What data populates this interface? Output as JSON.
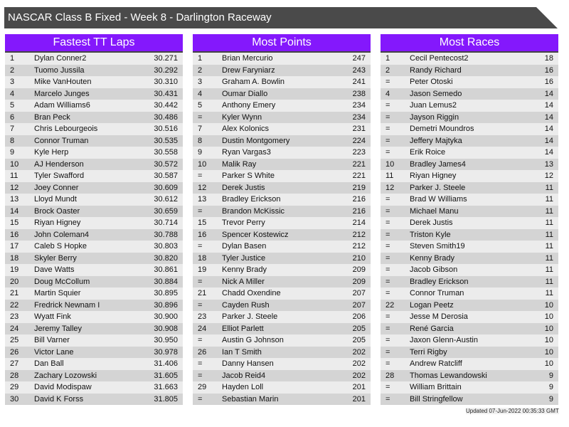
{
  "title": "NASCAR Class B Fixed - Week 8 - Darlington Raceway",
  "updated": "Updated 07-Jun-2022 00:35:33 GMT",
  "colors": {
    "header": "#8418fc",
    "title_bar": "#4a4a4a"
  },
  "tables": [
    {
      "title": "Fastest TT Laps",
      "rows": [
        [
          "1",
          "Dylan Conner2",
          "30.271"
        ],
        [
          "2",
          "Tuomo Jussila",
          "30.292"
        ],
        [
          "3",
          "Mike VanHouten",
          "30.310"
        ],
        [
          "4",
          "Marcelo Junges",
          "30.431"
        ],
        [
          "5",
          "Adam Williams6",
          "30.442"
        ],
        [
          "6",
          "Bran Peck",
          "30.486"
        ],
        [
          "7",
          "Chris Lebourgeois",
          "30.516"
        ],
        [
          "8",
          "Connor Truman",
          "30.535"
        ],
        [
          "9",
          "Kyle Herp",
          "30.558"
        ],
        [
          "10",
          "AJ Henderson",
          "30.572"
        ],
        [
          "11",
          "Tyler Swafford",
          "30.587"
        ],
        [
          "12",
          "Joey Conner",
          "30.609"
        ],
        [
          "13",
          "Lloyd Mundt",
          "30.612"
        ],
        [
          "14",
          "Brock Oaster",
          "30.659"
        ],
        [
          "15",
          "Riyan Higney",
          "30.714"
        ],
        [
          "16",
          "John Coleman4",
          "30.788"
        ],
        [
          "17",
          "Caleb S Hopke",
          "30.803"
        ],
        [
          "18",
          "Skyler Berry",
          "30.820"
        ],
        [
          "19",
          "Dave Watts",
          "30.861"
        ],
        [
          "20",
          "Doug McCollum",
          "30.884"
        ],
        [
          "21",
          "Martin Squier",
          "30.895"
        ],
        [
          "22",
          "Fredrick Newnam I",
          "30.896"
        ],
        [
          "23",
          "Wyatt Fink",
          "30.900"
        ],
        [
          "24",
          "Jeremy Talley",
          "30.908"
        ],
        [
          "25",
          "Bill Varner",
          "30.950"
        ],
        [
          "26",
          "Victor Lane",
          "30.978"
        ],
        [
          "27",
          "Dan Ball",
          "31.406"
        ],
        [
          "28",
          "Zachary Lozowski",
          "31.605"
        ],
        [
          "29",
          "David Modispaw",
          "31.663"
        ],
        [
          "30",
          "David K Forss",
          "31.805"
        ]
      ]
    },
    {
      "title": "Most Points",
      "rows": [
        [
          "1",
          "Brian Mercurio",
          "247"
        ],
        [
          "2",
          "Drew Faryniarz",
          "243"
        ],
        [
          "3",
          "Graham A. Bowlin",
          "241"
        ],
        [
          "4",
          "Oumar Diallo",
          "238"
        ],
        [
          "5",
          "Anthony Emery",
          "234"
        ],
        [
          "=",
          "Kyler Wynn",
          "234"
        ],
        [
          "7",
          "Alex Kolonics",
          "231"
        ],
        [
          "8",
          "Dustin Montgomery",
          "224"
        ],
        [
          "9",
          "Ryan Vargas3",
          "223"
        ],
        [
          "10",
          "Malik Ray",
          "221"
        ],
        [
          "=",
          "Parker S White",
          "221"
        ],
        [
          "12",
          "Derek Justis",
          "219"
        ],
        [
          "13",
          "Bradley Erickson",
          "216"
        ],
        [
          "=",
          "Brandon McKissic",
          "216"
        ],
        [
          "15",
          "Trevor Perry",
          "214"
        ],
        [
          "16",
          "Spencer Kostewicz",
          "212"
        ],
        [
          "=",
          "Dylan Basen",
          "212"
        ],
        [
          "18",
          "Tyler Justice",
          "210"
        ],
        [
          "19",
          "Kenny Brady",
          "209"
        ],
        [
          "=",
          "Nick A Miller",
          "209"
        ],
        [
          "21",
          "Chadd Oxendine",
          "207"
        ],
        [
          "=",
          "Cayden Rush",
          "207"
        ],
        [
          "23",
          "Parker J. Steele",
          "206"
        ],
        [
          "24",
          "Elliot Parlett",
          "205"
        ],
        [
          "=",
          "Austin G Johnson",
          "205"
        ],
        [
          "26",
          "Ian T Smith",
          "202"
        ],
        [
          "=",
          "Danny Hansen",
          "202"
        ],
        [
          "=",
          "Jacob Reid4",
          "202"
        ],
        [
          "29",
          "Hayden Loll",
          "201"
        ],
        [
          "=",
          "Sebastian Marin",
          "201"
        ]
      ]
    },
    {
      "title": "Most Races",
      "rows": [
        [
          "1",
          "Cecil Pentecost2",
          "18"
        ],
        [
          "2",
          "Randy Richard",
          "16"
        ],
        [
          "=",
          "Peter Otoski",
          "16"
        ],
        [
          "4",
          "Jason Semedo",
          "14"
        ],
        [
          "=",
          "Juan Lemus2",
          "14"
        ],
        [
          "=",
          "Jayson Riggin",
          "14"
        ],
        [
          "=",
          "Demetri Moundros",
          "14"
        ],
        [
          "=",
          "Jeffery Majtyka",
          "14"
        ],
        [
          "=",
          "Erik Roice",
          "14"
        ],
        [
          "10",
          "Bradley James4",
          "13"
        ],
        [
          "11",
          "Riyan Higney",
          "12"
        ],
        [
          "12",
          "Parker J. Steele",
          "11"
        ],
        [
          "=",
          "Brad W Williams",
          "11"
        ],
        [
          "=",
          "Michael Manu",
          "11"
        ],
        [
          "=",
          "Derek Justis",
          "11"
        ],
        [
          "=",
          "Triston Kyle",
          "11"
        ],
        [
          "=",
          "Steven Smith19",
          "11"
        ],
        [
          "=",
          "Kenny Brady",
          "11"
        ],
        [
          "=",
          "Jacob Gibson",
          "11"
        ],
        [
          "=",
          "Bradley Erickson",
          "11"
        ],
        [
          "=",
          "Connor Truman",
          "11"
        ],
        [
          "22",
          "Logan Peetz",
          "10"
        ],
        [
          "=",
          "Jesse M Derosia",
          "10"
        ],
        [
          "=",
          "René Garcia",
          "10"
        ],
        [
          "=",
          "Jaxon Glenn-Austin",
          "10"
        ],
        [
          "=",
          "Terri Rigby",
          "10"
        ],
        [
          "=",
          "Andrew Ratcliff",
          "10"
        ],
        [
          "28",
          "Thomas Lewandowski",
          "9"
        ],
        [
          "=",
          "William Brittain",
          "9"
        ],
        [
          "=",
          "Bill Stringfellow",
          "9"
        ]
      ]
    }
  ]
}
